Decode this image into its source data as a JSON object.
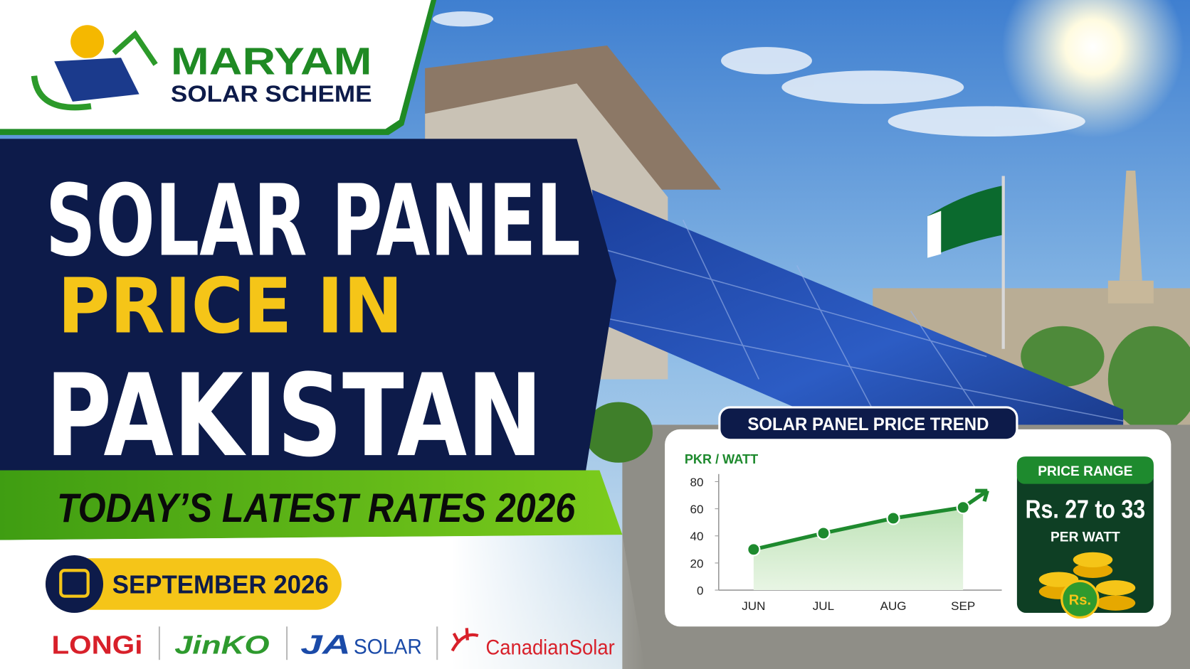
{
  "brand": {
    "name": "MARYAM",
    "subtitle": "SOLAR SCHEME"
  },
  "headline": {
    "line1": "SOLAR PANEL",
    "line2": "PRICE IN",
    "line3": "PAKISTAN"
  },
  "banner": "TODAY’S LATEST RATES 2026",
  "date": "SEPTEMBER 2026",
  "partners": [
    "LONGi",
    "JinKO",
    "JA",
    "SOLAR",
    "CanadianSolar"
  ],
  "chart_data": {
    "type": "line",
    "title": "SOLAR PANEL PRICE TREND",
    "y_label": "PKR / WATT",
    "categories": [
      "JUN",
      "JUL",
      "AUG",
      "SEP"
    ],
    "values": [
      30,
      42,
      53,
      61
    ],
    "color": "#1e8a2e",
    "ylim": [
      0,
      80
    ],
    "yticks": [
      0,
      20,
      40,
      60,
      80
    ]
  },
  "price_box": {
    "title": "PRICE RANGE",
    "range": "Rs. 27 to 33",
    "unit": "PER WATT",
    "coin": "Rs."
  }
}
